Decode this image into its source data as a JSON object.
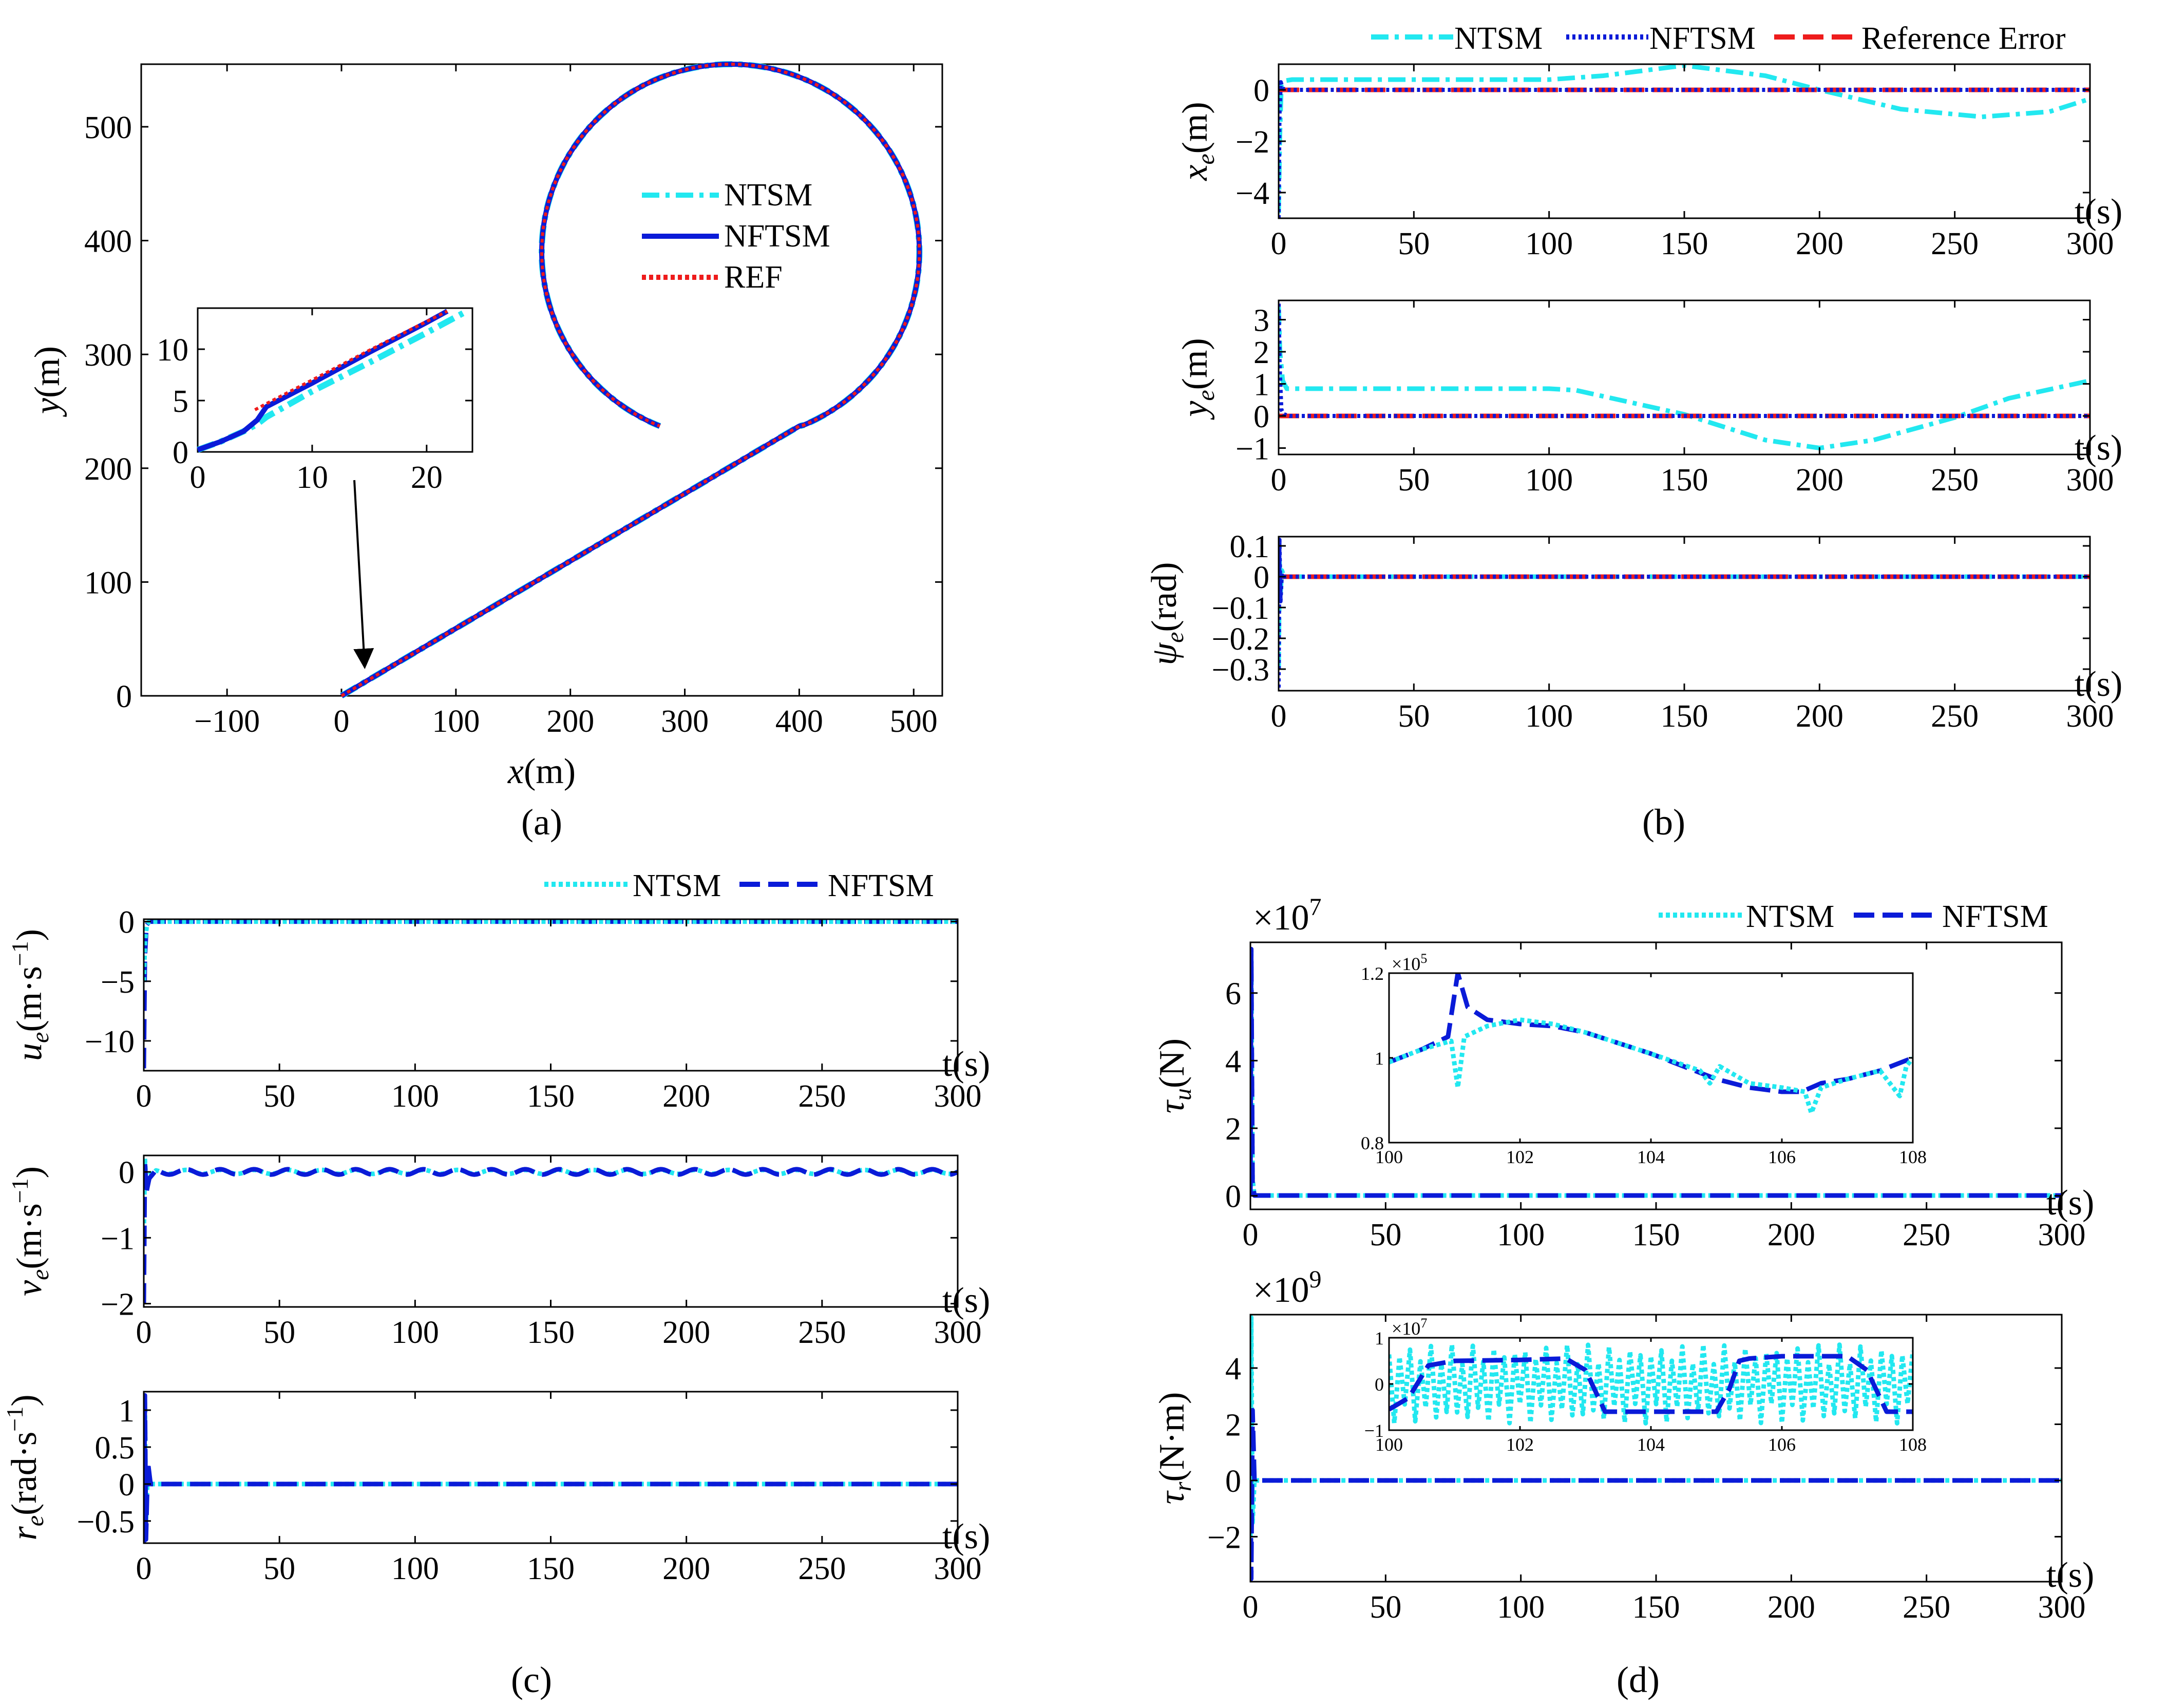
{
  "colors": {
    "ntsm": "#22e8f0",
    "nftsm": "#0a1bd8",
    "ref": "#ee1c1c",
    "arrow": "#000000"
  },
  "panels": {
    "a": {
      "caption": "(a)"
    },
    "b": {
      "caption": "(b)"
    },
    "c": {
      "caption": "(c)"
    },
    "d": {
      "caption": "(d)"
    }
  },
  "chart_data": [
    {
      "id": "a-main",
      "type": "line",
      "xlabel_var": "x",
      "xlabel_unit": "(m)",
      "ylabel_var": "y",
      "ylabel_unit": "(m)",
      "xlim": [
        -175,
        525
      ],
      "ylim": [
        0,
        555
      ],
      "xticks": [
        -100,
        0,
        100,
        200,
        300,
        400,
        500
      ],
      "yticks": [
        0,
        100,
        200,
        300,
        400,
        500
      ],
      "legend": [
        "NTSM",
        "NFTSM",
        "REF"
      ],
      "trajectory": {
        "line_start": [
          0,
          0
        ],
        "line_end": [
          400,
          237
        ],
        "circle_center": [
          340,
          390
        ],
        "circle_radius": 165,
        "circle_start_angle_deg": 248,
        "circle_end_angle_deg": -90,
        "turn": "counterclockwise"
      }
    },
    {
      "id": "a-inset",
      "type": "line",
      "xlim": [
        0,
        24
      ],
      "ylim": [
        0,
        14
      ],
      "xticks": [
        0,
        10,
        20
      ],
      "yticks": [
        0,
        5,
        10
      ],
      "series": [
        {
          "name": "NTSM",
          "x": [
            0,
            2,
            4,
            5.2,
            6,
            10,
            15,
            20,
            23.5
          ],
          "y": [
            0.2,
            1.0,
            2.0,
            2.7,
            3.4,
            5.9,
            8.7,
            11.6,
            13.7
          ]
        },
        {
          "name": "NFTSM",
          "x": [
            0,
            2,
            4,
            5.2,
            6,
            10,
            15,
            20,
            21.8
          ],
          "y": [
            0.2,
            1.0,
            2.0,
            3.1,
            4.4,
            6.7,
            9.7,
            12.6,
            13.7
          ]
        },
        {
          "name": "REF",
          "x": [
            5,
            6,
            10,
            15,
            20,
            21.8
          ],
          "y": [
            4.1,
            4.7,
            7.0,
            9.9,
            12.7,
            13.7
          ]
        }
      ]
    },
    {
      "id": "b1",
      "type": "line",
      "ylabel_var": "x",
      "ylabel_sub": "e",
      "ylabel_unit": "(m)",
      "xlabel": "t(s)",
      "xlim": [
        0,
        300
      ],
      "ylim": [
        -5,
        1
      ],
      "xticks": [
        0,
        50,
        100,
        150,
        200,
        250,
        300
      ],
      "yticks": [
        0,
        -2,
        -4
      ],
      "legend": [
        "NTSM",
        "NFTSM",
        "Reference Error"
      ],
      "series": [
        {
          "name": "NTSM",
          "x": [
            0,
            0.4,
            1,
            2,
            5,
            100,
            120,
            150,
            180,
            200,
            230,
            260,
            285,
            300
          ],
          "y": [
            -4.8,
            -2,
            0.2,
            0.35,
            0.4,
            0.4,
            0.55,
            0.95,
            0.55,
            0,
            -0.75,
            -1.05,
            -0.85,
            -0.35
          ]
        },
        {
          "name": "NFTSM",
          "x": [
            0,
            0.3,
            0.8,
            1.5,
            3,
            300
          ],
          "y": [
            -5,
            -1,
            0.3,
            0.05,
            0,
            0
          ]
        },
        {
          "name": "Reference Error",
          "x": [
            0,
            300
          ],
          "y": [
            0,
            0
          ]
        }
      ]
    },
    {
      "id": "b2",
      "type": "line",
      "ylabel_var": "y",
      "ylabel_sub": "e",
      "ylabel_unit": "(m)",
      "xlabel": "t(s)",
      "xlim": [
        0,
        300
      ],
      "ylim": [
        -1.2,
        3.6
      ],
      "xticks": [
        0,
        50,
        100,
        150,
        200,
        250,
        300
      ],
      "yticks": [
        3,
        2,
        1,
        0,
        -1
      ],
      "series": [
        {
          "name": "NTSM",
          "x": [
            0,
            0.5,
            1.5,
            3,
            5,
            100,
            110,
            150,
            180,
            200,
            220,
            250,
            270,
            300
          ],
          "y": [
            3.4,
            2,
            1.1,
            0.85,
            0.85,
            0.85,
            0.8,
            0.05,
            -0.75,
            -1,
            -0.75,
            -0.05,
            0.55,
            1.1
          ]
        },
        {
          "name": "NFTSM",
          "x": [
            0,
            0.4,
            1,
            2,
            4,
            300
          ],
          "y": [
            3.5,
            1.5,
            0.2,
            0.05,
            0,
            0
          ]
        },
        {
          "name": "Reference Error",
          "x": [
            0,
            300
          ],
          "y": [
            0,
            0
          ]
        }
      ]
    },
    {
      "id": "b3",
      "type": "line",
      "ylabel_var": "ψ",
      "ylabel_sub": "e",
      "ylabel_unit": "(rad)",
      "xlabel": "t(s)",
      "xlim": [
        0,
        300
      ],
      "ylim": [
        -0.37,
        0.13
      ],
      "xticks": [
        0,
        50,
        100,
        150,
        200,
        250,
        300
      ],
      "yticks": [
        0.1,
        0,
        -0.1,
        -0.2,
        -0.3
      ],
      "series": [
        {
          "name": "NTSM",
          "x": [
            0,
            0.3,
            0.7,
            1.2,
            2,
            300
          ],
          "y": [
            -0.3,
            0.05,
            -0.05,
            0.02,
            0,
            0
          ]
        },
        {
          "name": "NFTSM",
          "x": [
            0,
            0.3,
            0.7,
            1.2,
            2,
            300
          ],
          "y": [
            -0.36,
            0.12,
            -0.08,
            0.01,
            0,
            0
          ]
        },
        {
          "name": "Reference Error",
          "x": [
            0,
            300
          ],
          "y": [
            0,
            0
          ]
        }
      ]
    },
    {
      "id": "c1",
      "type": "line",
      "ylabel_var": "u",
      "ylabel_sub": "e",
      "ylabel_unit": "(m·s",
      "ylabel_sup": "−1",
      "ylabel_close": ")",
      "xlabel": "t(s)",
      "xlim": [
        0,
        300
      ],
      "ylim": [
        -12.5,
        0.2
      ],
      "xticks": [
        0,
        50,
        100,
        150,
        200,
        250,
        300
      ],
      "yticks": [
        0,
        -5,
        -10
      ],
      "legend": [
        "NTSM",
        "NFTSM"
      ],
      "series": [
        {
          "name": "NTSM",
          "x": [
            0,
            0.5,
            1.2,
            2,
            300
          ],
          "y": [
            -5,
            -1.5,
            -0.2,
            0,
            0
          ]
        },
        {
          "name": "NFTSM",
          "x": [
            0,
            0.4,
            1,
            2,
            300
          ],
          "y": [
            -12.3,
            -3,
            -0.3,
            0,
            0
          ]
        }
      ]
    },
    {
      "id": "c2",
      "type": "line",
      "ylabel_var": "v",
      "ylabel_sub": "e",
      "ylabel_unit": "(m·s",
      "ylabel_sup": "−1",
      "ylabel_close": ")",
      "xlabel": "t(s)",
      "xlim": [
        0,
        300
      ],
      "ylim": [
        -2.05,
        0.25
      ],
      "xticks": [
        0,
        50,
        100,
        150,
        200,
        250,
        300
      ],
      "yticks": [
        0,
        -1,
        -2
      ],
      "series": [
        {
          "name": "NTSM",
          "x": [
            0,
            0.4,
            1,
            2,
            4,
            300
          ],
          "y": [
            -1.0,
            0.2,
            -0.25,
            -0.05,
            0,
            0
          ],
          "ripple": {
            "amplitude": 0.03,
            "period": 12.5
          }
        },
        {
          "name": "NFTSM",
          "x": [
            0,
            0.4,
            1,
            2,
            4,
            300
          ],
          "y": [
            -2.0,
            0.15,
            -0.3,
            -0.1,
            0,
            0
          ],
          "ripple": {
            "amplitude": 0.04,
            "period": 12.5
          }
        }
      ]
    },
    {
      "id": "c3",
      "type": "line",
      "ylabel_var": "r",
      "ylabel_sub": "e",
      "ylabel_unit": "(rad·s",
      "ylabel_sup": "−1",
      "ylabel_close": ")",
      "xlabel": "t(s)",
      "xlim": [
        0,
        300
      ],
      "ylim": [
        -0.8,
        1.25
      ],
      "xticks": [
        0,
        50,
        100,
        150,
        200,
        250,
        300
      ],
      "yticks": [
        1,
        0.5,
        0,
        -0.5
      ],
      "series": [
        {
          "name": "NTSM",
          "x": [
            0,
            0.4,
            0.8,
            1.5,
            2.5,
            300
          ],
          "y": [
            0.3,
            1.1,
            -0.5,
            0.2,
            0,
            0
          ]
        },
        {
          "name": "NFTSM",
          "x": [
            0,
            0.4,
            0.8,
            1.5,
            2.5,
            300
          ],
          "y": [
            -0.8,
            1.2,
            -0.75,
            0.3,
            0,
            0
          ]
        }
      ]
    },
    {
      "id": "d1",
      "type": "line",
      "ylabel_var": "τ",
      "ylabel_sub": "u",
      "ylabel_unit": "(N)",
      "xlabel": "t(s)",
      "multiplier": "×10",
      "multiplier_exp": "7",
      "xlim": [
        0,
        300
      ],
      "ylim": [
        -0.4,
        7.5
      ],
      "xticks": [
        0,
        50,
        100,
        150,
        200,
        250,
        300
      ],
      "yticks": [
        0,
        2,
        4,
        6
      ],
      "legend": [
        "NTSM",
        "NFTSM"
      ],
      "series": [
        {
          "name": "NTSM",
          "x": [
            0,
            0.3,
            0.8,
            1.5,
            300
          ],
          "y": [
            4.0,
            7.2,
            0.5,
            0.01,
            0.01
          ]
        },
        {
          "name": "NFTSM",
          "x": [
            0,
            0.3,
            0.8,
            1.5,
            300
          ],
          "y": [
            0,
            7.3,
            0.3,
            0.01,
            0.01
          ]
        }
      ]
    },
    {
      "id": "d1-inset",
      "type": "line",
      "multiplier": "×10",
      "multiplier_exp": "5",
      "xlim": [
        100,
        108
      ],
      "ylim": [
        0.8,
        1.2
      ],
      "xticks": [
        100,
        102,
        104,
        106,
        108
      ],
      "yticks": [
        0.8,
        1,
        1.2
      ],
      "series": [
        {
          "name": "NFTSM",
          "x": [
            100,
            100.5,
            100.9,
            101.05,
            101.2,
            101.5,
            102,
            102.5,
            103,
            104,
            105,
            105.5,
            106,
            106.3,
            106.6,
            107,
            107.5,
            108
          ],
          "y": [
            0.99,
            1.02,
            1.05,
            1.2,
            1.12,
            1.09,
            1.08,
            1.075,
            1.06,
            1.01,
            0.95,
            0.93,
            0.92,
            0.92,
            0.94,
            0.95,
            0.97,
            1.0
          ]
        },
        {
          "name": "NTSM",
          "x": [
            100,
            100.5,
            100.95,
            101.05,
            101.15,
            101.5,
            102,
            102.5,
            103,
            104,
            104.75,
            104.9,
            105.05,
            105.5,
            106,
            106.35,
            106.45,
            106.6,
            107,
            107.5,
            107.8,
            107.9,
            108
          ],
          "y": [
            0.99,
            1.02,
            1.04,
            0.93,
            1.05,
            1.075,
            1.09,
            1.08,
            1.06,
            1.01,
            0.97,
            0.94,
            0.98,
            0.94,
            0.93,
            0.92,
            0.87,
            0.93,
            0.95,
            0.97,
            0.91,
            0.98,
            1.0
          ]
        }
      ]
    },
    {
      "id": "d2",
      "type": "line",
      "ylabel_var": "τ",
      "ylabel_sub": "r",
      "ylabel_unit": "(N·m)",
      "xlabel": "t(s)",
      "multiplier": "×10",
      "multiplier_exp": "9",
      "xlim": [
        0,
        300
      ],
      "ylim": [
        -3.6,
        5.9
      ],
      "xticks": [
        0,
        50,
        100,
        150,
        200,
        250,
        300
      ],
      "yticks": [
        4,
        2,
        0,
        -2
      ],
      "series": [
        {
          "name": "NTSM",
          "x": [
            0,
            0.3,
            0.8,
            1.5,
            300
          ],
          "y": [
            -2,
            5.8,
            -1.5,
            0,
            0
          ]
        },
        {
          "name": "NFTSM",
          "x": [
            0,
            0.3,
            0.8,
            1.5,
            300
          ],
          "y": [
            0,
            -3.5,
            2.5,
            0,
            0
          ]
        }
      ]
    },
    {
      "id": "d2-inset",
      "type": "line",
      "multiplier": "×10",
      "multiplier_exp": "7",
      "xlim": [
        100,
        108
      ],
      "ylim": [
        -1,
        1
      ],
      "xticks": [
        100,
        102,
        104,
        106,
        108
      ],
      "yticks": [
        1,
        0,
        -1
      ],
      "series": [
        {
          "name": "NFTSM",
          "x": [
            100,
            100.3,
            100.6,
            101,
            102,
            102.7,
            103.0,
            103.3,
            104,
            105,
            105.2,
            105.35,
            105.5,
            106,
            107,
            107.3,
            107.6,
            108
          ],
          "y": [
            -0.55,
            -0.3,
            0.4,
            0.5,
            0.52,
            0.55,
            0.3,
            -0.6,
            -0.6,
            -0.6,
            -0.1,
            0.5,
            0.55,
            0.6,
            0.6,
            0.3,
            -0.6,
            -0.6
          ]
        },
        {
          "name": "NTSM",
          "oscillation": {
            "from": 100,
            "to": 108,
            "period": 0.16,
            "amplitude": 0.85,
            "center": 0
          }
        }
      ]
    }
  ]
}
